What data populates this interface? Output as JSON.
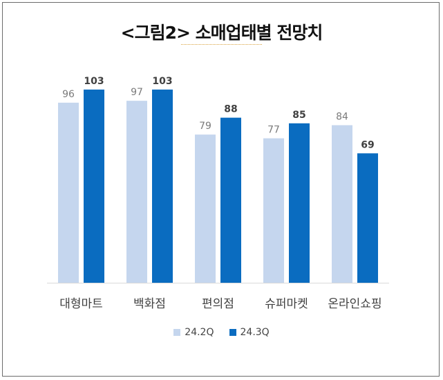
{
  "title": "<그림2> 소매업태별 전망치",
  "colors": {
    "series1": "#c5d6ee",
    "series2": "#0a6cc0",
    "axis": "#d9d9d9",
    "label1": "#7a7a7a",
    "label2": "#404040"
  },
  "chart_data": {
    "type": "bar",
    "title": "<그림2> 소매업태별 전망치",
    "categories": [
      "대형마트",
      "백화점",
      "편의점",
      "슈퍼마켓",
      "온라인쇼핑"
    ],
    "series": [
      {
        "name": "24.2Q",
        "values": [
          96,
          97,
          79,
          77,
          84
        ]
      },
      {
        "name": "24.3Q",
        "values": [
          103,
          103,
          88,
          85,
          69
        ]
      }
    ],
    "ylim": [
      0,
      110
    ],
    "grid": false,
    "legend": "bottom"
  }
}
